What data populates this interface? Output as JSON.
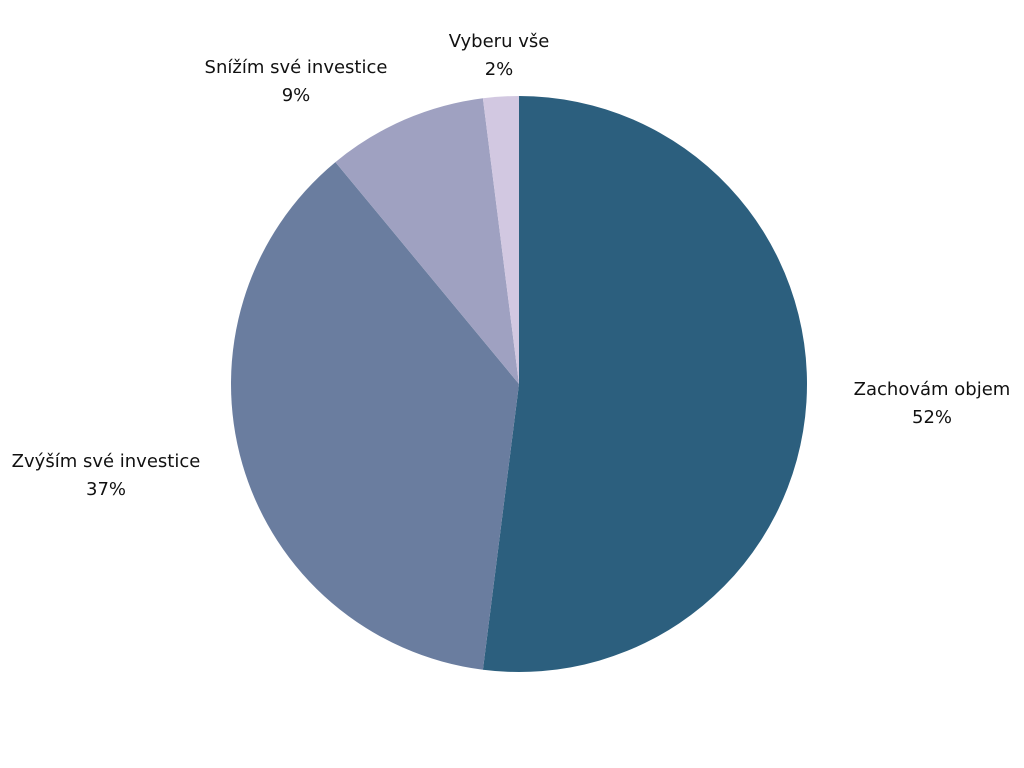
{
  "chart_data": {
    "type": "pie",
    "title": "",
    "slices": [
      {
        "label": "Zachovám objem",
        "value": 52,
        "value_label": "52%",
        "color": "#2c5f7e"
      },
      {
        "label": "Zvýším své investice",
        "value": 37,
        "value_label": "37%",
        "color": "#6a7d9f"
      },
      {
        "label": "Snížím své investice",
        "value": 9,
        "value_label": "9%",
        "color": "#9fa1c1"
      },
      {
        "label": "Vyberu vše",
        "value": 2,
        "value_label": "2%",
        "color": "#d2c8e1"
      }
    ],
    "start_angle": "12 o'clock",
    "direction": "clockwise",
    "legend": "none"
  }
}
